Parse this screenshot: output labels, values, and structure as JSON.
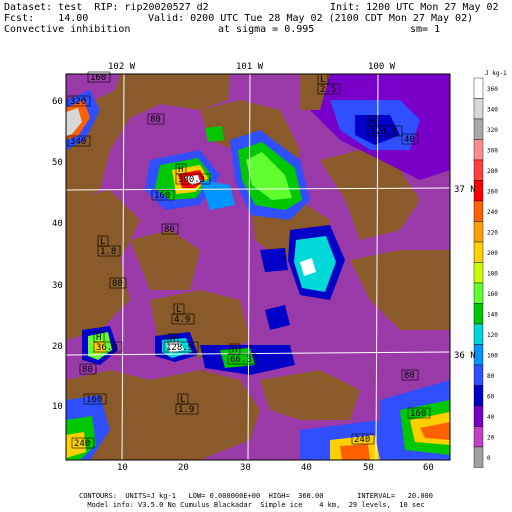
{
  "header": {
    "dataset": "Dataset: test  RIP: rip20020527 d2",
    "init": "Init: 1200 UTC Mon 27 May 02",
    "fcst": "Fcst:    14.00",
    "valid": "Valid: 0200 UTC Tue 28 May 02 (2100 CDT Mon 27 May 02)",
    "field": "Convective inhibition",
    "sigma": "at sigma = 0.995",
    "sm": "sm= 1"
  },
  "top_ticks": [
    "102 W",
    "101 W",
    "100 W"
  ],
  "right_ticks": [
    "37 N",
    "36 N"
  ],
  "x_ticks": [
    "10",
    "20",
    "30",
    "40",
    "50",
    "60"
  ],
  "y_ticks": [
    "60",
    "50",
    "40",
    "30",
    "20",
    "10"
  ],
  "colorbar": {
    "units": "J kg-1",
    "labels": [
      "360",
      "340",
      "320",
      "300",
      "280",
      "260",
      "240",
      "220",
      "200",
      "180",
      "160",
      "140",
      "120",
      "100",
      "80",
      "60",
      "40",
      "20",
      "0"
    ],
    "colors": [
      "#ffffff",
      "#d8d8d8",
      "#a8a8a8",
      "#ff8c8c",
      "#ff4040",
      "#ff0000",
      "#ff6000",
      "#ffa000",
      "#ffd000",
      "#c8ff00",
      "#60ff30",
      "#00c800",
      "#00d8d8",
      "#0096ff",
      "#3050ff",
      "#0000c8",
      "#7800c8",
      "#c040c8",
      "#a0a0a0"
    ]
  },
  "map_labels": [
    {
      "t": "320"
    },
    {
      "t": "160"
    },
    {
      "t": "340"
    },
    {
      "t": "80"
    },
    {
      "t": "L"
    },
    {
      "t": "2.5"
    },
    {
      "t": "H"
    },
    {
      "t": "124.9"
    },
    {
      "t": "40"
    },
    {
      "t": "H"
    },
    {
      "t": "380.3"
    },
    {
      "t": "160"
    },
    {
      "t": "80"
    },
    {
      "t": "L"
    },
    {
      "t": "1.8"
    },
    {
      "t": "80"
    },
    {
      "t": "L"
    },
    {
      "t": "4.9"
    },
    {
      "t": "H"
    },
    {
      "t": "36.9"
    },
    {
      "t": "H"
    },
    {
      "t": "128.9"
    },
    {
      "t": "H"
    },
    {
      "t": "66.3"
    },
    {
      "t": "80"
    },
    {
      "t": "L"
    },
    {
      "t": "1.9"
    },
    {
      "t": "160"
    },
    {
      "t": "240"
    },
    {
      "t": "240"
    },
    {
      "t": "160"
    },
    {
      "t": "80"
    }
  ],
  "footer": {
    "line1": "CONTOURS:  UNITS=J kg-1   LOW= 0.000000E+00  HIGH=  360.00        INTERVAL=   20.000",
    "line2": "Model info: V3.5.0 No Cumulus Blackadar  Simple ice    4 km,  29 levels,  10 sec"
  }
}
